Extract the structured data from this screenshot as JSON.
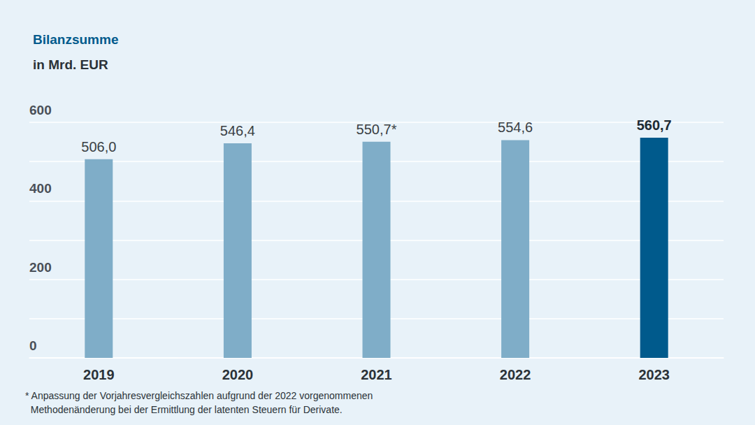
{
  "chart_data": {
    "type": "bar",
    "title": "Bilanzsumme",
    "subtitle": "in Mrd. EUR",
    "categories": [
      "2019",
      "2020",
      "2021",
      "2022",
      "2023"
    ],
    "values": [
      506.0,
      546.4,
      550.7,
      554.6,
      560.7
    ],
    "value_labels": [
      "506,0",
      "546,4",
      "550,7*",
      "554,6",
      "560,7"
    ],
    "colors": [
      "#7fadc8",
      "#7fadc8",
      "#7fadc8",
      "#7fadc8",
      "#005a8c"
    ],
    "ylim": [
      0,
      600
    ],
    "yticks": [
      0,
      200,
      400,
      600
    ],
    "grid": true,
    "data_labels": true,
    "annotations": [
      "* Anpassung der Vorjahresvergleichszahlen aufgrund der 2022 vorgenommenen\n  Methodenänderung bei der Ermittlung der latenten Steuern für Derivate."
    ]
  }
}
